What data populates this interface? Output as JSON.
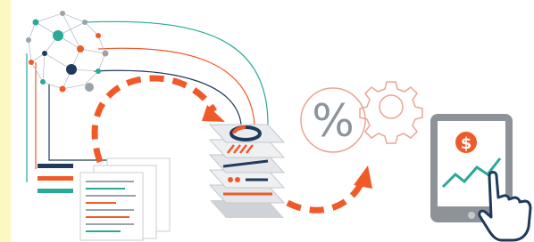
{
  "icons": {
    "percent": "%",
    "dollar": "$"
  }
}
